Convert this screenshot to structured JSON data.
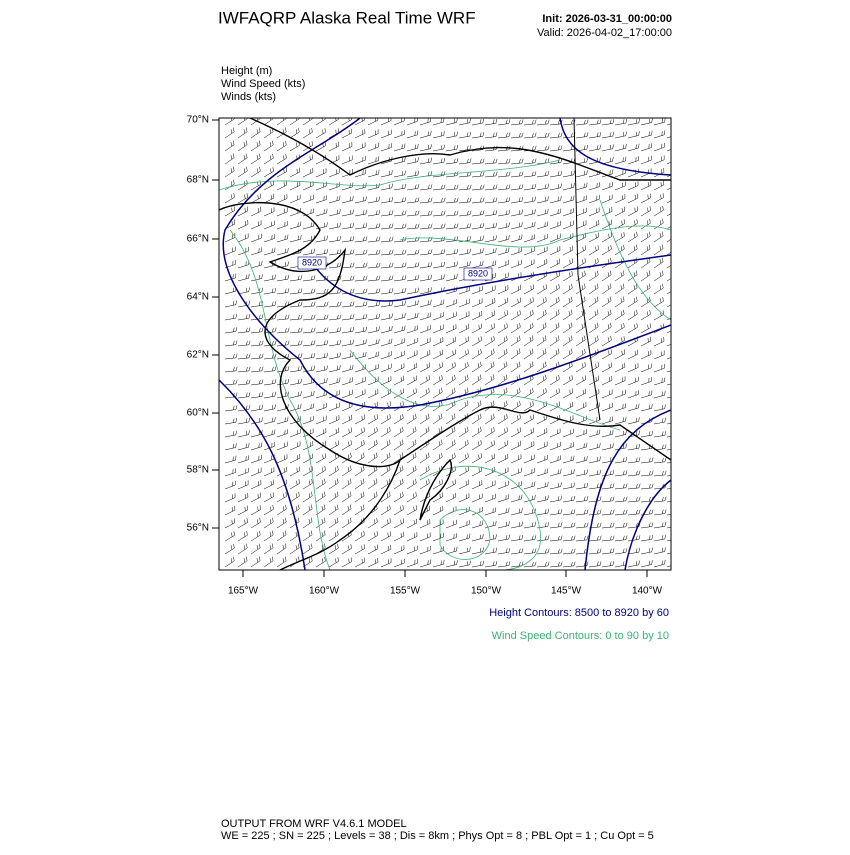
{
  "header": {
    "title": "IWFAQRP Alaska Real Time WRF",
    "init": "Init: 2026-03-31_00:00:00",
    "valid": "Valid: 2026-04-02_17:00:00"
  },
  "fields": [
    "Height   (m)",
    "Wind Speed   (kts)",
    "Winds   (kts)"
  ],
  "map": {
    "lat_labels": [
      "70°N",
      "68°N",
      "66°N",
      "64°N",
      "62°N",
      "60°N",
      "58°N",
      "56°N"
    ],
    "lon_labels": [
      "165°W",
      "160°W",
      "155°W",
      "150°W",
      "145°W",
      "140°W"
    ],
    "contour_labels": [
      "8920",
      "8920"
    ]
  },
  "contour_info": {
    "height": "Height Contours: 8500 to 8920 by 60",
    "wind_speed": "Wind Speed Contours: 0 to 90 by 10"
  },
  "footer": {
    "line1": "OUTPUT FROM WRF V4.6.1 MODEL",
    "line2": "WE = 225 ; SN = 225 ; Levels = 38 ; Dis = 8km ; Phys Opt = 8 ; PBL Opt = 1 ; Cu Opt = 5"
  }
}
